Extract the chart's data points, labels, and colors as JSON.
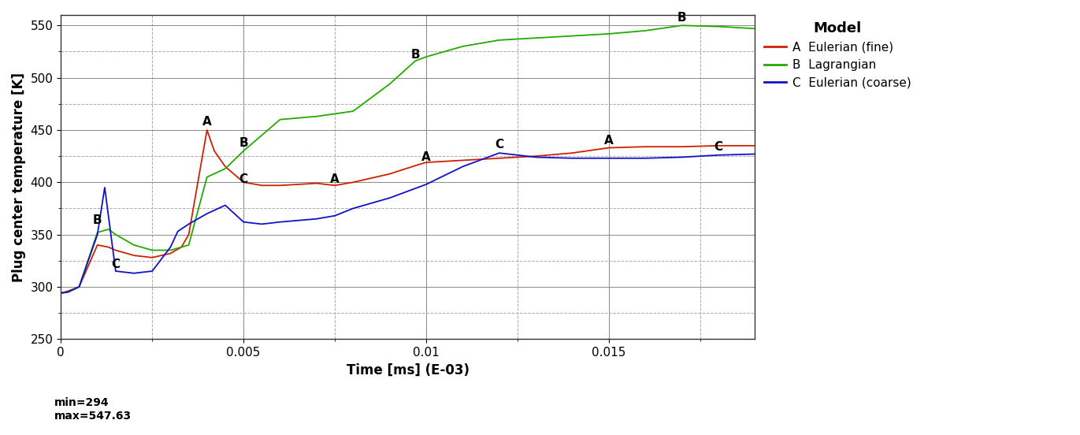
{
  "title": "",
  "xlabel": "Time [ms] (E-03)",
  "ylabel": "Plug center temperature [K]",
  "xlim": [
    0,
    0.019
  ],
  "ylim": [
    250,
    560
  ],
  "yticks_major": [
    250,
    300,
    350,
    400,
    450,
    500,
    550
  ],
  "yticks_minor": [
    275,
    325,
    375,
    425,
    475,
    525
  ],
  "xticks_major": [
    0,
    0.005,
    0.01,
    0.015
  ],
  "xticks_minor": [
    0.0025,
    0.0075,
    0.0125,
    0.0175
  ],
  "background_color": "#ffffff",
  "grid_major_color": "#888888",
  "grid_minor_color": "#aaaaaa",
  "legend_title": "Model",
  "colors": {
    "A": "#cc2200",
    "B": "#22aa00",
    "C": "#1111cc"
  },
  "annotations": {
    "A": [
      [
        0.004,
        452
      ],
      [
        0.0075,
        397
      ],
      [
        0.01,
        418
      ],
      [
        0.015,
        434
      ]
    ],
    "B": [
      [
        0.001,
        358
      ],
      [
        0.005,
        432
      ],
      [
        0.0097,
        516
      ],
      [
        0.017,
        552
      ]
    ],
    "C": [
      [
        0.0015,
        316
      ],
      [
        0.005,
        397
      ],
      [
        0.012,
        430
      ],
      [
        0.018,
        428
      ]
    ]
  },
  "min_label": "min=294",
  "max_label": "max=547.63",
  "series_A": {
    "x": [
      0,
      0.0002,
      0.0005,
      0.001,
      0.0013,
      0.0015,
      0.002,
      0.0025,
      0.003,
      0.0033,
      0.0035,
      0.004,
      0.0042,
      0.0045,
      0.005,
      0.0055,
      0.006,
      0.007,
      0.0075,
      0.008,
      0.009,
      0.0098,
      0.01,
      0.011,
      0.012,
      0.013,
      0.014,
      0.015,
      0.016,
      0.017,
      0.018,
      0.019
    ],
    "y": [
      294,
      296,
      300,
      340,
      338,
      335,
      330,
      328,
      332,
      338,
      350,
      450,
      430,
      415,
      400,
      397,
      397,
      399,
      397,
      400,
      408,
      417,
      419,
      421,
      423,
      425,
      428,
      433,
      434,
      434,
      435,
      435
    ]
  },
  "series_B": {
    "x": [
      0,
      0.0002,
      0.0005,
      0.001,
      0.0013,
      0.0015,
      0.002,
      0.0025,
      0.003,
      0.0035,
      0.004,
      0.0045,
      0.005,
      0.006,
      0.007,
      0.008,
      0.009,
      0.0097,
      0.01,
      0.011,
      0.012,
      0.013,
      0.014,
      0.015,
      0.016,
      0.017,
      0.018,
      0.019
    ],
    "y": [
      294,
      295,
      300,
      352,
      355,
      350,
      340,
      335,
      335,
      340,
      405,
      413,
      430,
      460,
      463,
      468,
      494,
      516,
      520,
      530,
      536,
      538,
      540,
      542,
      545,
      550,
      549,
      547
    ]
  },
  "series_C": {
    "x": [
      0,
      0.0002,
      0.0005,
      0.001,
      0.0012,
      0.0015,
      0.002,
      0.0025,
      0.003,
      0.0032,
      0.0035,
      0.004,
      0.0045,
      0.005,
      0.0055,
      0.006,
      0.007,
      0.0075,
      0.008,
      0.009,
      0.01,
      0.011,
      0.012,
      0.013,
      0.014,
      0.015,
      0.016,
      0.017,
      0.018,
      0.019
    ],
    "y": [
      294,
      295,
      300,
      350,
      395,
      315,
      313,
      315,
      338,
      353,
      360,
      370,
      378,
      362,
      360,
      362,
      365,
      368,
      375,
      385,
      398,
      415,
      428,
      424,
      423,
      423,
      423,
      424,
      426,
      427
    ]
  }
}
